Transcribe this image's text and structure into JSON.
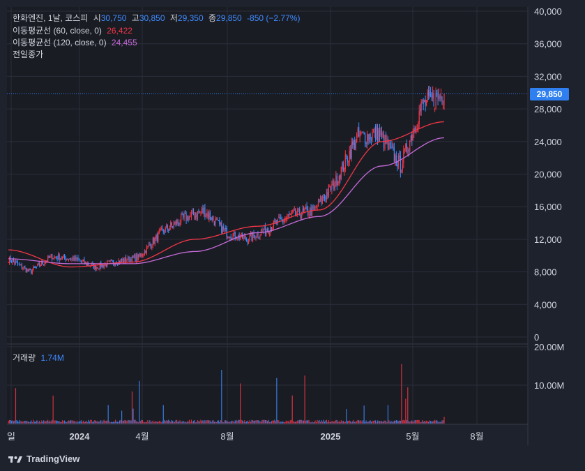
{
  "header": {
    "symbol": "한화엔진, 1날, 코스피",
    "open_label": "시",
    "open": "30,750",
    "high_label": "고",
    "high": "30,850",
    "low_label": "저",
    "low": "29,350",
    "close_label": "종",
    "close": "29,850",
    "change": "-850 (−2.77%)"
  },
  "ma60": {
    "label": "이동평균선 (60, close, 0)",
    "value": "26,422"
  },
  "ma120": {
    "label": "이동평균선 (120, close, 0)",
    "value": "24,455"
  },
  "prev_close_label": "전일종가",
  "last_price_tag": "29,850",
  "volume": {
    "label": "거래량",
    "value": "1.74M"
  },
  "brand": "TradingView",
  "colors": {
    "up": "#f23645",
    "down": "#3d8bff",
    "ma60": "#f23645",
    "ma120": "#c66bd9",
    "bg": "#1e222d",
    "grid": "#2a2e39",
    "text": "#d1d4dc"
  },
  "chart_data": {
    "type": "candlestick",
    "title": "한화엔진, 1날, 코스피",
    "price_axis": {
      "ylim": [
        0,
        40000
      ],
      "ticks": [
        "40,000",
        "36,000",
        "32,000",
        "28,000",
        "24,000",
        "20,000",
        "16,000",
        "12,000",
        "8,000",
        "4,000",
        "0"
      ]
    },
    "volume_axis": {
      "ylim": [
        0,
        20000000
      ],
      "ticks": [
        "20.00M",
        "10.00M"
      ]
    },
    "x_ticks": [
      "일",
      "2024",
      "4월",
      "8월",
      "2025",
      "5월",
      "8월"
    ],
    "price_series_approx": {
      "description": "closing price path (KRW), approx monthly",
      "x": [
        "2023-10",
        "2023-11",
        "2023-12",
        "2024-01",
        "2024-02",
        "2024-03",
        "2024-04",
        "2024-05",
        "2024-06",
        "2024-07",
        "2024-08",
        "2024-09",
        "2024-10",
        "2024-11",
        "2024-12",
        "2025-01",
        "2025-02",
        "2025-03",
        "2025-04",
        "2025-05",
        "2025-06"
      ],
      "close": [
        9600,
        8000,
        9900,
        9600,
        8600,
        9300,
        9800,
        12800,
        14500,
        15500,
        12800,
        12000,
        13500,
        15000,
        15500,
        19000,
        24500,
        25000,
        21000,
        28500,
        29850
      ]
    },
    "ma60_path": {
      "x": [
        "2023-10",
        "2024-01",
        "2024-04",
        "2024-07",
        "2024-10",
        "2025-01",
        "2025-04",
        "2025-06"
      ],
      "values": [
        10700,
        8600,
        9200,
        12000,
        13600,
        15600,
        24000,
        26422
      ]
    },
    "ma120_path": {
      "x": [
        "2023-10",
        "2024-01",
        "2024-04",
        "2024-07",
        "2024-10",
        "2025-01",
        "2025-04",
        "2025-06"
      ],
      "values": [
        9600,
        9000,
        9000,
        10500,
        12800,
        14800,
        21000,
        24455
      ]
    }
  }
}
